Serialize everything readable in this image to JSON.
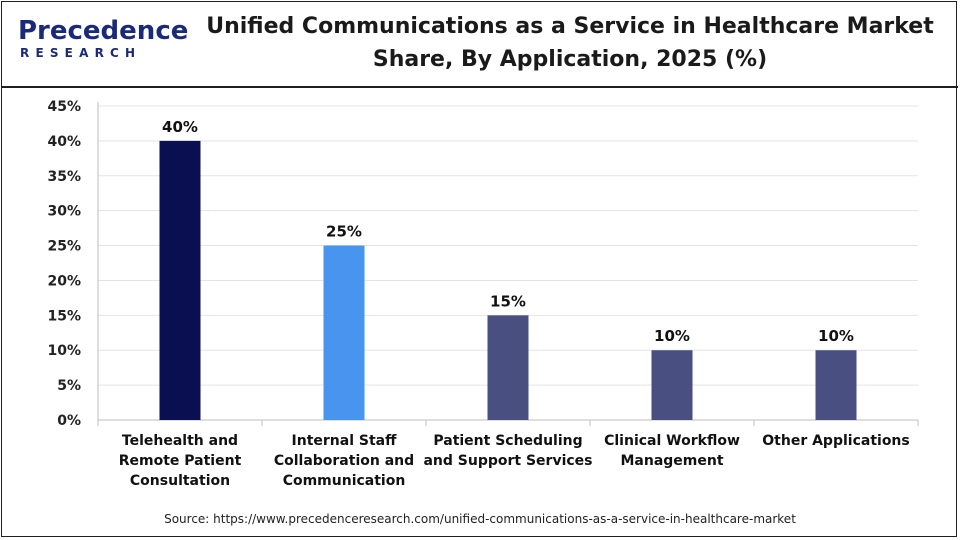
{
  "header": {
    "logo_word": "Precedence",
    "logo_sub": "RESEARCH",
    "title_line1": "Unified Communications as a Service in Healthcare Market",
    "title_line2": "Share, By Application, 2025 (%)"
  },
  "source": "Source: https://www.precedenceresearch.com/unified-communications-as-a-service-in-healthcare-market",
  "chart_data": {
    "type": "bar",
    "title": "Unified Communications as a Service in Healthcare Market Share, By Application, 2025 (%)",
    "categories": [
      [
        "Telehealth and",
        "Remote Patient",
        "Consultation"
      ],
      [
        "Internal Staff",
        "Collaboration and",
        "Communication"
      ],
      [
        "Patient Scheduling",
        "and Support Services"
      ],
      [
        "Clinical Workflow",
        "Management"
      ],
      [
        "Other Applications"
      ]
    ],
    "values": [
      40,
      25,
      15,
      10,
      10
    ],
    "data_labels": [
      "40%",
      "25%",
      "15%",
      "10%",
      "10%"
    ],
    "colors": [
      "#0a0f52",
      "#4895ef",
      "#4a4f82",
      "#4a4f82",
      "#4a4f82"
    ],
    "ylim": [
      0,
      45
    ],
    "yticks": [
      0,
      5,
      10,
      15,
      20,
      25,
      30,
      35,
      40,
      45
    ],
    "ytick_labels": [
      "0%",
      "5%",
      "10%",
      "15%",
      "20%",
      "25%",
      "30%",
      "35%",
      "40%",
      "45%"
    ],
    "grid": true,
    "xlabel": "",
    "ylabel": ""
  }
}
